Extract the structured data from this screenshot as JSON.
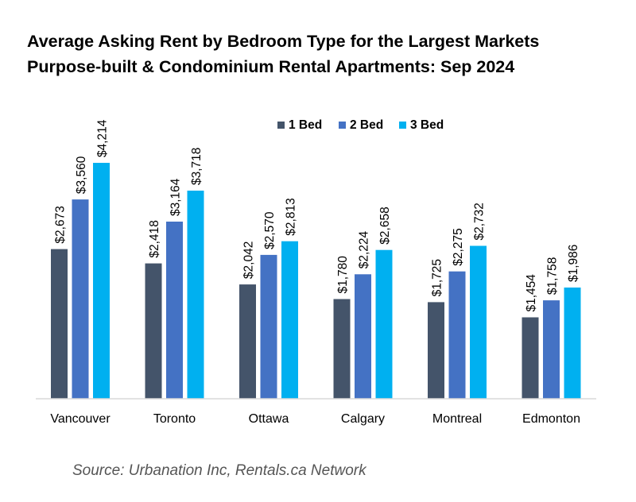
{
  "chart_data": {
    "type": "bar",
    "title": "Average Asking Rent by Bedroom Type for the Largest Markets",
    "subtitle": "Purpose-built & Condominium Rental Apartments: Sep 2024",
    "categories": [
      "Vancouver",
      "Toronto",
      "Ottawa",
      "Calgary",
      "Montreal",
      "Edmonton"
    ],
    "series": [
      {
        "name": "1 Bed",
        "color": "#44546a",
        "values": [
          2673,
          2418,
          2042,
          1780,
          1725,
          1454
        ],
        "labels": [
          "$2,673",
          "$2,418",
          "$2,042",
          "$1,780",
          "$1,725",
          "$1,454"
        ]
      },
      {
        "name": "2 Bed",
        "color": "#4472c4",
        "values": [
          3560,
          3164,
          2570,
          2224,
          2275,
          1758
        ],
        "labels": [
          "$3,560",
          "$3,164",
          "$2,570",
          "$2,224",
          "$2,275",
          "$1,758"
        ]
      },
      {
        "name": "3 Bed",
        "color": "#00b0f0",
        "values": [
          4214,
          3718,
          2813,
          2658,
          2732,
          1986
        ],
        "labels": [
          "$4,214",
          "$3,718",
          "$2,813",
          "$2,658",
          "$2,732",
          "$1,986"
        ]
      }
    ],
    "xlabel": "",
    "ylabel": "",
    "ylim": [
      0,
      4214
    ],
    "grid": false,
    "legend_position": "top-center",
    "data_labels": "rotated-vertical"
  },
  "source": "Source: Urbanation Inc, Rentals.ca Network"
}
